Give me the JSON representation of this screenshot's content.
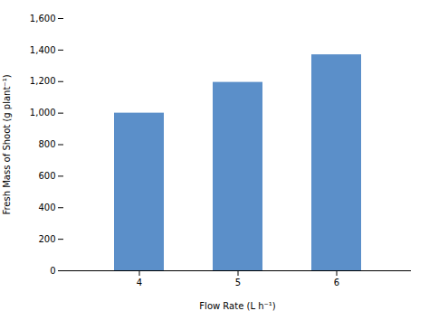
{
  "chart_data": {
    "type": "bar",
    "categories": [
      "4",
      "5",
      "6"
    ],
    "values": [
      1000,
      1195,
      1370
    ],
    "color": "#5B8FC9",
    "xlabel": "Flow Rate (L h⁻¹)",
    "ylabel": "Fresh Mass of Shoot (g plant⁻¹)",
    "ylim": [
      0,
      1600
    ],
    "yticks": [
      0,
      200,
      400,
      600,
      800,
      {
        "value": 1000,
        "label": "1,000"
      },
      {
        "value": 1200,
        "label": "1,200"
      },
      {
        "value": 1400,
        "label": "1,400"
      },
      {
        "value": 1600,
        "label": "1,600"
      }
    ],
    "grid": false
  }
}
